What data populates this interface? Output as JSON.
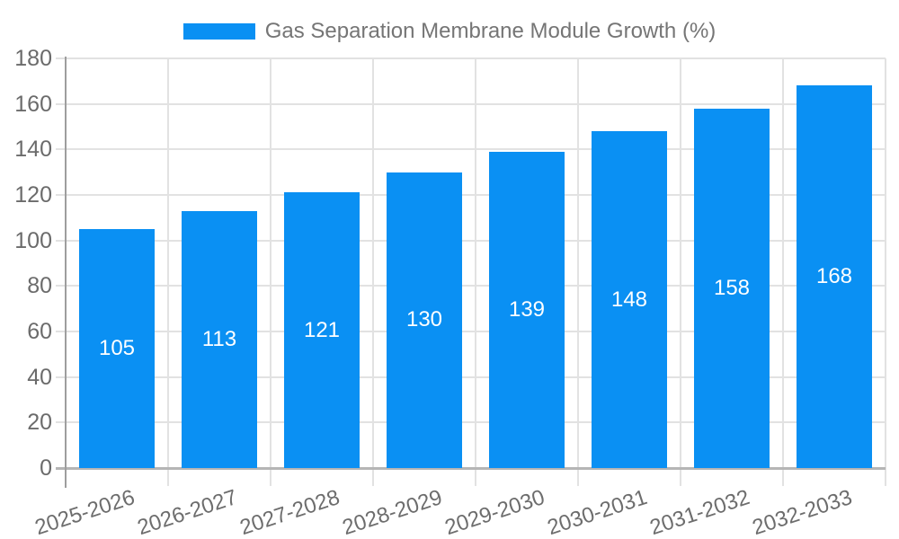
{
  "legend": {
    "label": "Gas Separation Membrane Module Growth (%)"
  },
  "chart_data": {
    "type": "bar",
    "title": "Gas Separation Membrane Module Growth (%)",
    "categories": [
      "2025-2026",
      "2026-2027",
      "2027-2028",
      "2028-2029",
      "2029-2030",
      "2030-2031",
      "2031-2032",
      "2032-2033"
    ],
    "values": [
      105,
      113,
      121,
      130,
      139,
      148,
      158,
      168
    ],
    "xlabel": "",
    "ylabel": "",
    "ylim": [
      0,
      180
    ],
    "yticks": [
      0,
      20,
      40,
      60,
      80,
      100,
      120,
      140,
      160,
      180
    ],
    "grid": "horizontal and vertical light gray",
    "legend_position": "top-center",
    "bar_color": "#0a90f3",
    "value_label_color": "#ffffff",
    "tick_text_color": "#6d6d6d",
    "legend_text_color": "#757575"
  }
}
